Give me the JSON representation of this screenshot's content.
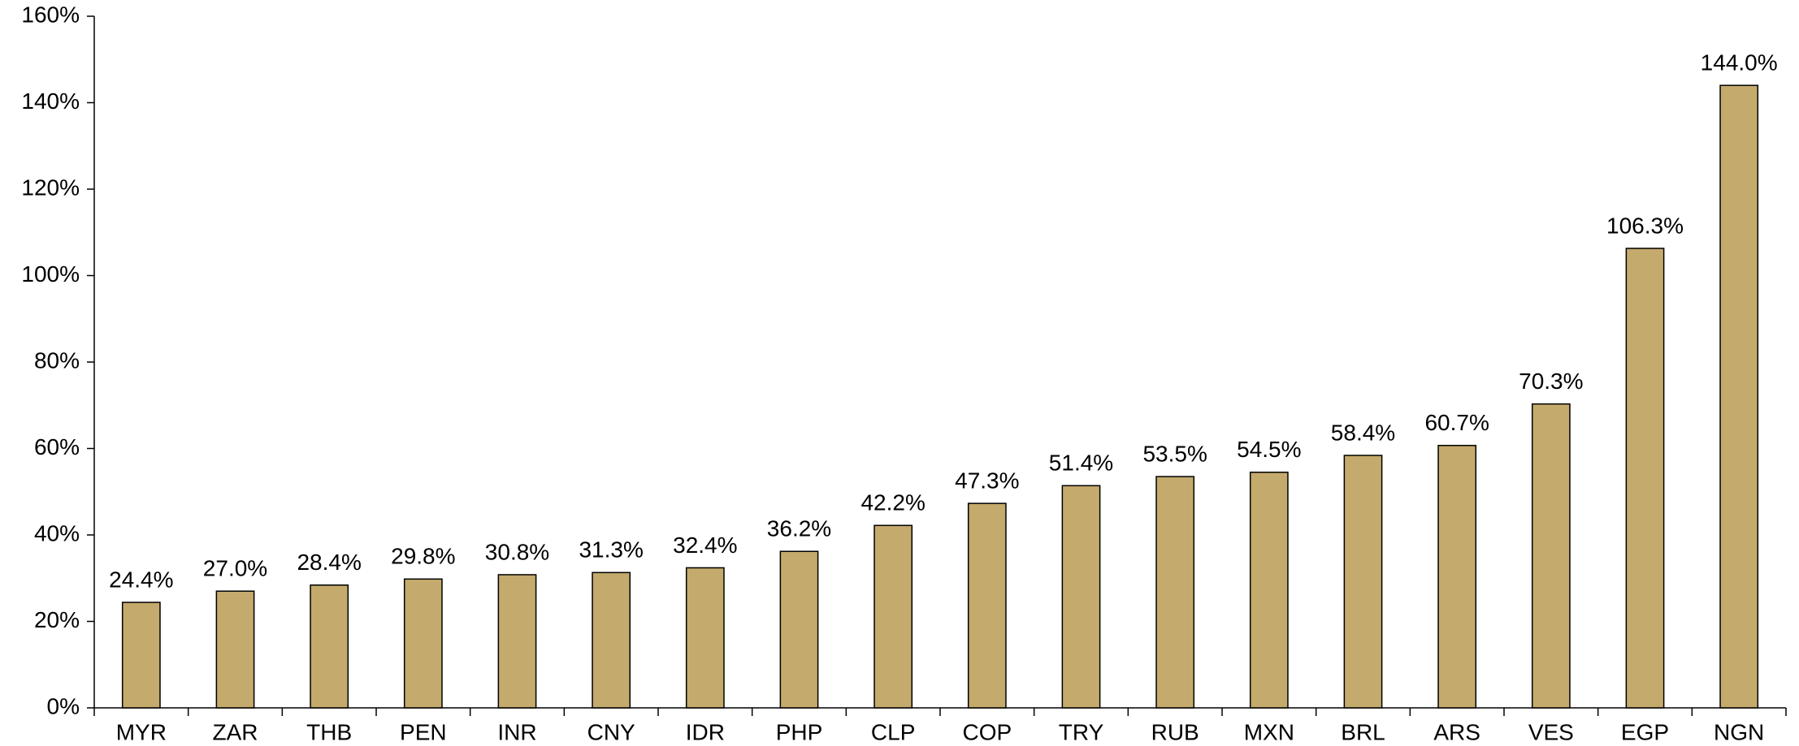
{
  "chart_data": {
    "type": "bar",
    "categories": [
      "MYR",
      "ZAR",
      "THB",
      "PEN",
      "INR",
      "CNY",
      "IDR",
      "PHP",
      "CLP",
      "COP",
      "TRY",
      "RUB",
      "MXN",
      "BRL",
      "ARS",
      "VES",
      "EGP",
      "NGN"
    ],
    "values": [
      24.4,
      27.0,
      28.4,
      29.8,
      30.8,
      31.3,
      32.4,
      36.2,
      42.2,
      47.3,
      51.4,
      53.5,
      54.5,
      58.4,
      60.7,
      70.3,
      106.3,
      144.0
    ],
    "value_labels": [
      "24.4%",
      "27.0%",
      "28.4%",
      "29.8%",
      "30.8%",
      "31.3%",
      "32.4%",
      "36.2%",
      "42.2%",
      "47.3%",
      "51.4%",
      "53.5%",
      "54.5%",
      "58.4%",
      "60.7%",
      "70.3%",
      "106.3%",
      "144.0%"
    ],
    "color": "#c4aa6c",
    "ylim": [
      0,
      160
    ],
    "yticks": [
      {
        "value": 0,
        "label": "0%"
      },
      {
        "value": 20,
        "label": "20%"
      },
      {
        "value": 40,
        "label": "40%"
      },
      {
        "value": 60,
        "label": "60%"
      },
      {
        "value": 80,
        "label": "80%"
      },
      {
        "value": 100,
        "label": "100%"
      },
      {
        "value": 120,
        "label": "120%"
      },
      {
        "value": 140,
        "label": "140%"
      },
      {
        "value": 160,
        "label": "160%"
      }
    ],
    "grid": false
  }
}
